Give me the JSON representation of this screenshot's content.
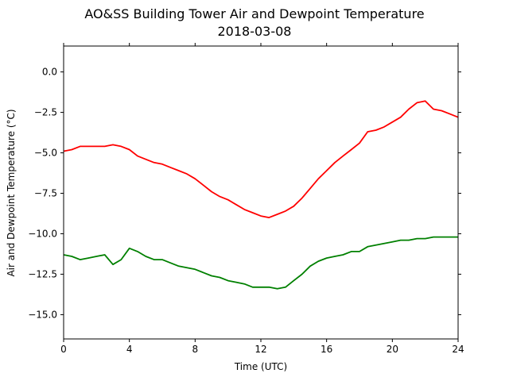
{
  "chart_data": {
    "type": "line",
    "title": "AO&SS Building Tower Air and Dewpoint Temperature",
    "subtitle": "2018-03-08",
    "xlabel": "Time (UTC)",
    "ylabel": "Air and Dewpoint Temperature (°C)",
    "xlim": [
      0,
      24
    ],
    "ylim": [
      -16.5,
      1.6
    ],
    "xticks": [
      0,
      4,
      8,
      12,
      16,
      20,
      24
    ],
    "xtick_labels": [
      "0",
      "4",
      "8",
      "12",
      "16",
      "20",
      "24"
    ],
    "yticks": [
      0.0,
      -2.5,
      -5.0,
      -7.5,
      -10.0,
      -12.5,
      -15.0
    ],
    "ytick_labels": [
      "0.0",
      "−2.5",
      "−5.0",
      "−7.5",
      "−10.0",
      "−12.5",
      "−15.0"
    ],
    "grid": false,
    "series": [
      {
        "color": "#ff0000",
        "x": [
          0,
          0.5,
          1,
          1.5,
          2,
          2.5,
          3,
          3.5,
          4,
          4.5,
          5,
          5.5,
          6,
          6.5,
          7,
          7.5,
          8,
          8.5,
          9,
          9.5,
          10,
          10.5,
          11,
          11.5,
          12,
          12.5,
          13,
          13.5,
          14,
          14.5,
          15,
          15.5,
          16,
          16.5,
          17,
          17.5,
          18,
          18.5,
          19,
          19.5,
          20,
          20.5,
          21,
          21.5,
          22,
          22.5,
          23,
          23.5,
          24
        ],
        "y": [
          -4.9,
          -4.8,
          -4.6,
          -4.6,
          -4.6,
          -4.6,
          -4.5,
          -4.6,
          -4.8,
          -5.2,
          -5.4,
          -5.6,
          -5.7,
          -5.9,
          -6.1,
          -6.3,
          -6.6,
          -7.0,
          -7.4,
          -7.7,
          -7.9,
          -8.2,
          -8.5,
          -8.7,
          -8.9,
          -9.0,
          -8.8,
          -8.6,
          -8.3,
          -7.8,
          -7.2,
          -6.6,
          -6.1,
          -5.6,
          -5.2,
          -4.8,
          -4.4,
          -3.7,
          -3.6,
          -3.4,
          -3.1,
          -2.8,
          -2.3,
          -1.9,
          -1.8,
          -2.3,
          -2.4,
          -2.6,
          -2.8
        ]
      },
      {
        "color": "#008000",
        "x": [
          0,
          0.5,
          1,
          1.5,
          2,
          2.5,
          3,
          3.5,
          4,
          4.5,
          5,
          5.5,
          6,
          6.5,
          7,
          7.5,
          8,
          8.5,
          9,
          9.5,
          10,
          10.5,
          11,
          11.5,
          12,
          12.5,
          13,
          13.5,
          14,
          14.5,
          15,
          15.5,
          16,
          16.5,
          17,
          17.5,
          18,
          18.5,
          19,
          19.5,
          20,
          20.5,
          21,
          21.5,
          22,
          22.5,
          23,
          23.5,
          24
        ],
        "y": [
          -11.3,
          -11.4,
          -11.6,
          -11.5,
          -11.4,
          -11.3,
          -11.9,
          -11.6,
          -10.9,
          -11.1,
          -11.4,
          -11.6,
          -11.6,
          -11.8,
          -12.0,
          -12.1,
          -12.2,
          -12.4,
          -12.6,
          -12.7,
          -12.9,
          -13.0,
          -13.1,
          -13.3,
          -13.3,
          -13.3,
          -13.4,
          -13.3,
          -12.9,
          -12.5,
          -12.0,
          -11.7,
          -11.5,
          -11.4,
          -11.3,
          -11.1,
          -11.1,
          -10.8,
          -10.7,
          -10.6,
          -10.5,
          -10.4,
          -10.4,
          -10.3,
          -10.3,
          -10.2,
          -10.2,
          -10.2,
          -10.2
        ]
      }
    ]
  }
}
